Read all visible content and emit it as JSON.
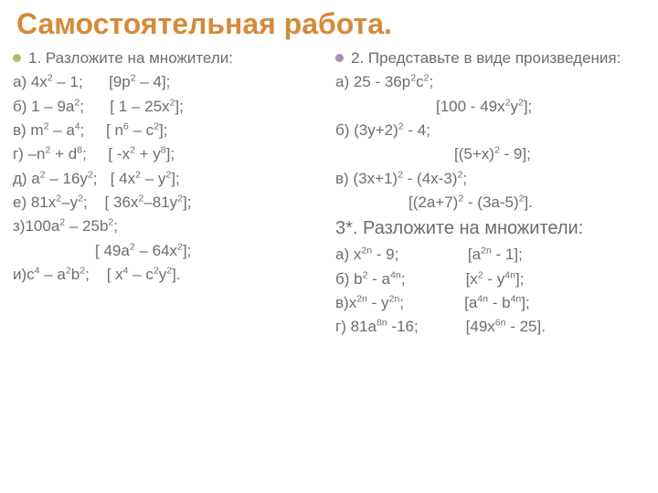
{
  "colors": {
    "title": "#d58a3a",
    "text": "#6a6f6a",
    "bullet_left": "#b7b96a",
    "bullet_right": "#a78fb3"
  },
  "title": "Самостоятельная работа.",
  "left": {
    "heading": "1. Разложите на множители:",
    "a": "а) 4x² – 1;      [9p² – 4];",
    "b": "б) 1 – 9a²;      [ 1 – 25x²];",
    "v": "в) m² – a⁴;     [ n⁶ – c²];",
    "g": "г) –n² + d⁸;     [ -x² + y⁸];",
    "d": "д) a² – 16y²;   [ 4x² – y²];",
    "e": "е) 81x²–y²;    [ 36x²–81y²];",
    "z": "з)100a² – 25b²;",
    "z2": "[ 49a² – 64x²];",
    "i": "и)c⁴ – a²b²;    [ x⁴ – c²y²]."
  },
  "right": {
    "heading": "2. Представьте в виде произведения:",
    "a": "а) 25 - 36p²c²;",
    "a2": "[100 - 49x²y²];",
    "b": "б) (3y+2)² - 4;",
    "b2": "[(5+x)² - 9];",
    "v": "в) (3x+1)² - (4x-3)²;",
    "v2": "[(2a+7)² - (3a-5)²].",
    "three_heading": "3*. Разложите на множители:",
    "ta": "а) x²ⁿ - 9;                [a²ⁿ - 1];",
    "tb": "б) b² - a⁴ⁿ;              [x² - y⁴ⁿ];",
    "tv": "в)x²ⁿ - y²ⁿ;              [a⁴ⁿ - b⁴ⁿ];",
    "tg": "г) 81a⁸ⁿ -16;           [49x⁶ⁿ - 25]."
  }
}
